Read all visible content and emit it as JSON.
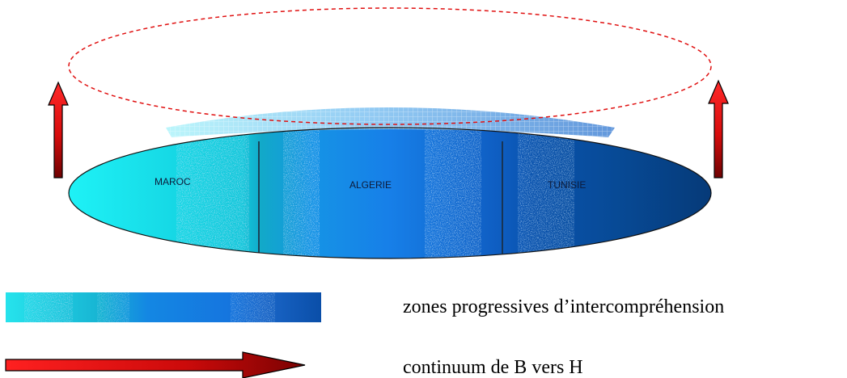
{
  "diagram": {
    "regions": [
      {
        "label": "MAROC",
        "color": "#14e6ef"
      },
      {
        "label": "ALGERIE",
        "color": "#1478e6"
      },
      {
        "label": "TUNISIE",
        "color": "#07458c"
      }
    ],
    "legend": {
      "gradient_text": "zones progressives d’intercompréhension",
      "arrow_text": "continuum de B vers H"
    },
    "colors": {
      "arrow_red": "#ff1a1a",
      "arrow_dark": "#7a0000",
      "dashed_outline": "#e01010",
      "disc_outline": "#111111"
    }
  }
}
